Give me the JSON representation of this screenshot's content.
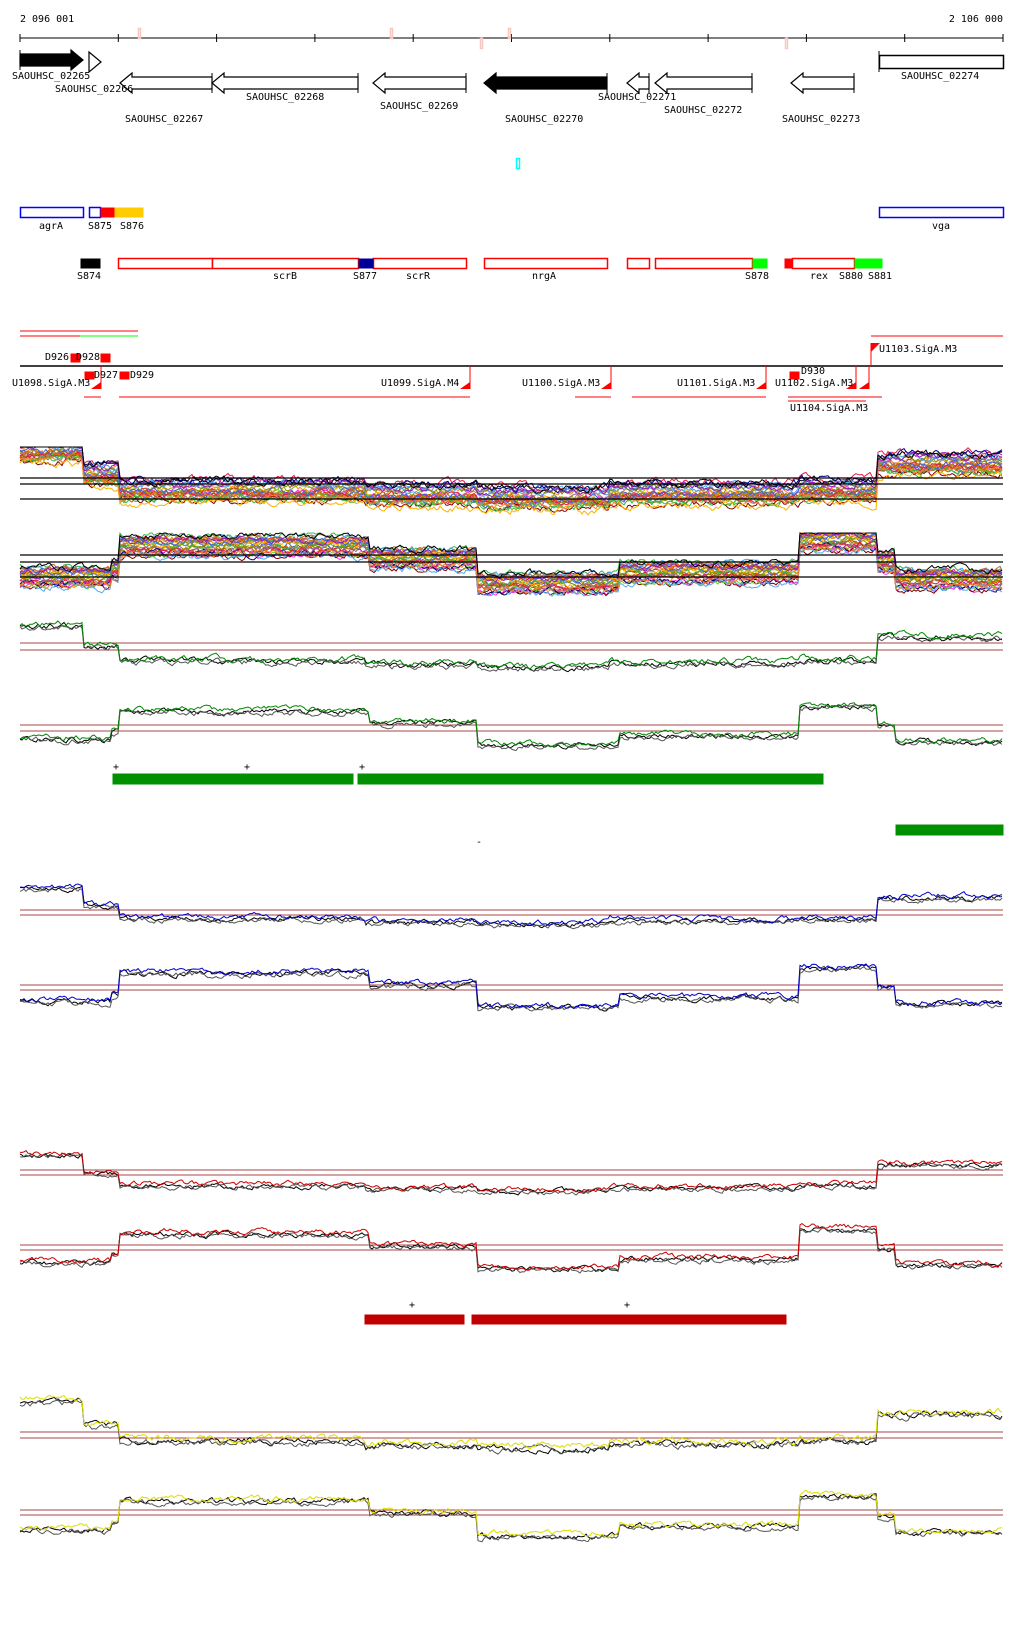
{
  "ruler": {
    "start_label": "2 096 001",
    "end_label": "2 106 000"
  },
  "genes": [
    {
      "label": "SAOUHSC_02265",
      "strand": "+",
      "filled": true
    },
    {
      "label": "SAOUHSC_02266",
      "strand": "+",
      "filled": false
    },
    {
      "label": "SAOUHSC_02267",
      "strand": "-",
      "filled": false
    },
    {
      "label": "SAOUHSC_02268",
      "strand": "-",
      "filled": false
    },
    {
      "label": "SAOUHSC_02269",
      "strand": "-",
      "filled": false
    },
    {
      "label": "SAOUHSC_02270",
      "strand": "-",
      "filled": true
    },
    {
      "label": "SAOUHSC_02271",
      "strand": "-",
      "filled": false
    },
    {
      "label": "SAOUHSC_02272",
      "strand": "-",
      "filled": false
    },
    {
      "label": "SAOUHSC_02273",
      "strand": "-",
      "filled": false
    },
    {
      "label": "SAOUHSC_02274",
      "strand": "none",
      "filled": false
    }
  ],
  "features_row1": [
    "agrA",
    "S875",
    "S876",
    "vga"
  ],
  "features_row2": [
    "S874",
    "scrB",
    "S877",
    "scrR",
    "nrgA",
    "S878",
    "rex",
    "S880",
    "S881"
  ],
  "segments": [
    "D926",
    "D928",
    "D927",
    "D929",
    "D930"
  ],
  "promoters": [
    "U1098.SigA.M3",
    "U1099.SigA.M4",
    "U1100.SigA.M3",
    "U1101.SigA.M3",
    "U1102.SigA.M3",
    "U1104.SigA.M3",
    "U1103.SigA.M3"
  ],
  "strand_marks": {
    "plus": "+",
    "minus": "-"
  },
  "colors": {
    "gene_outline": "#000000",
    "feature_blue": "#0000ff",
    "feature_red": "#ff0000",
    "feature_yellow": "#ffcc00",
    "feature_green": "#00ff00",
    "feature_navy": "#000099",
    "cyan_marker": "#00ffff",
    "green_track": "#008800",
    "green_bar": "#009000",
    "blue_track": "#0000cc",
    "red_track": "#cc0000",
    "red_bar": "#c00000",
    "yellow_track": "#dddd00",
    "ref_line": "#aa4444"
  }
}
